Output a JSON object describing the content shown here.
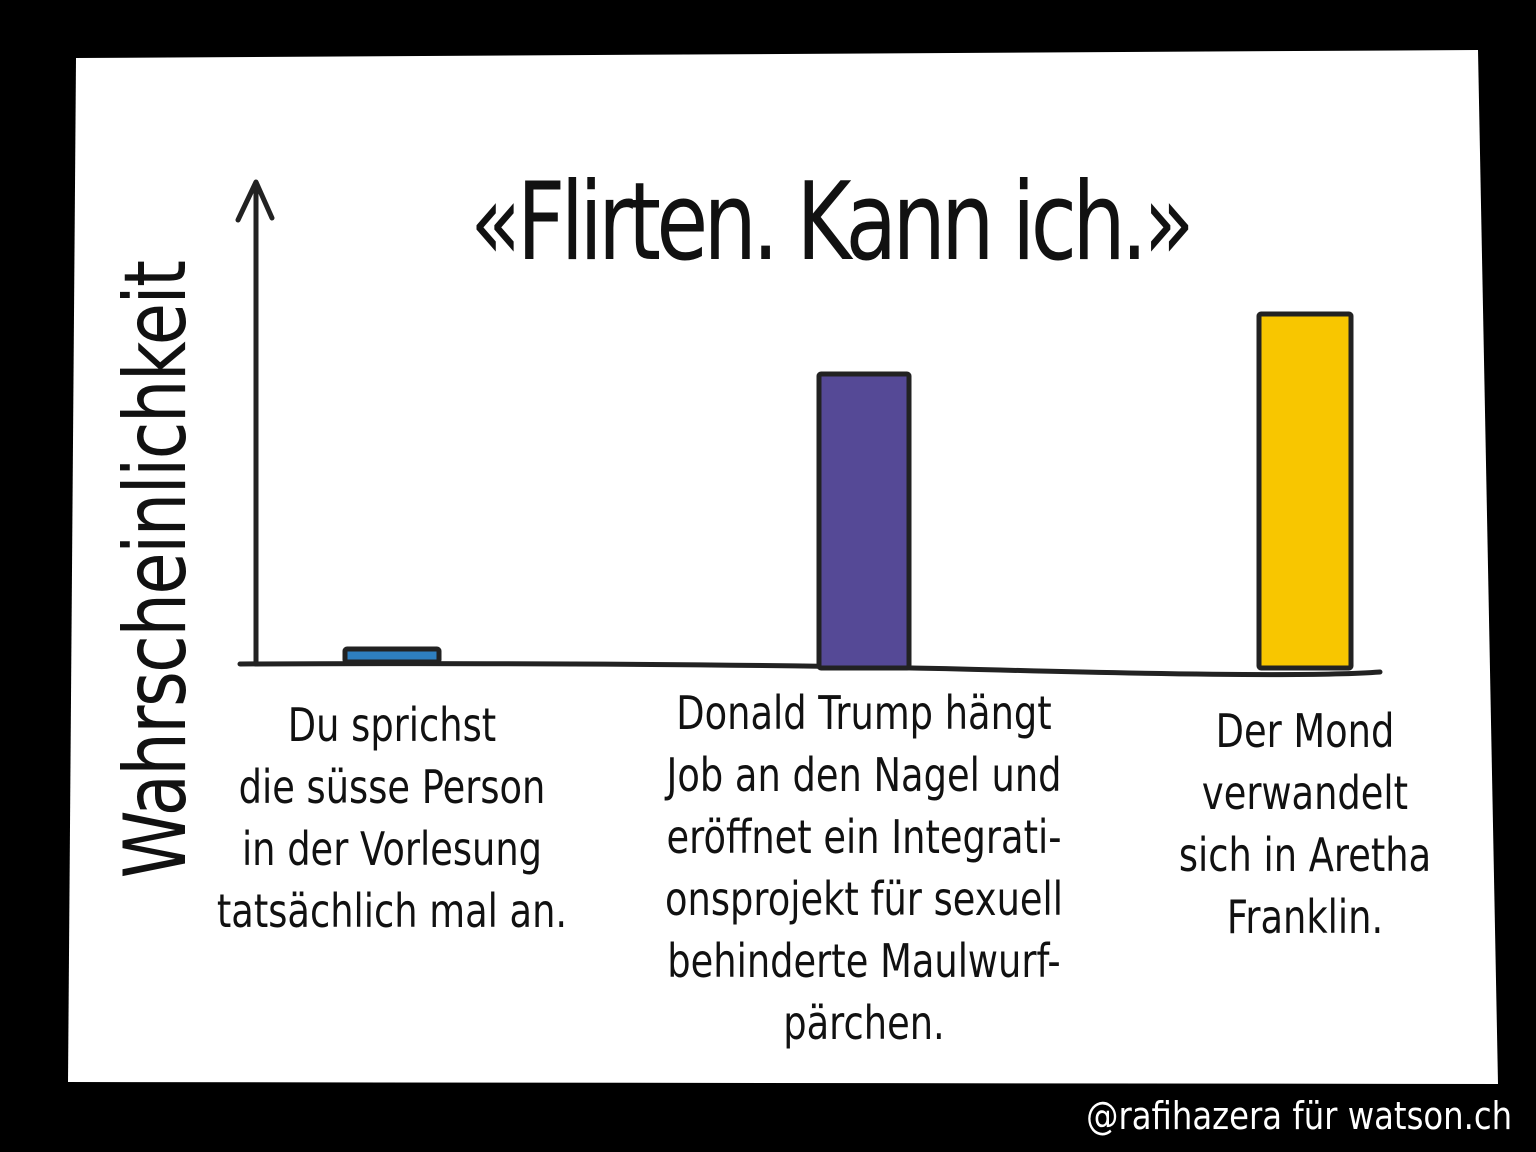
{
  "credit": "@rafihazera für watson.ch",
  "colors": {
    "background": "#000000",
    "paper": "#ffffff",
    "ink": "#222222",
    "bar1": "#2e7fc0",
    "bar2": "#554996",
    "bar3": "#f8c600"
  },
  "chart_data": {
    "type": "bar",
    "title": "«Flirten. Kann ich.»",
    "xlabel": "",
    "ylabel": "Wahrscheinlichkeit",
    "ylim": [
      0,
      100
    ],
    "grid": false,
    "categories": [
      "Du sprichst\ndie süsse Person\nin der Vorlesung\ntatsächlich mal an.",
      "Donald Trump hängt\nJob an den Nagel und\neröffnet ein Integrati-\nonsprojekt für sexuell\nbehinderte Maulwurf-\npärchen.",
      "Der Mond\nverwandelt\nsich in Aretha\nFranklin."
    ],
    "values": [
      3,
      58,
      70
    ]
  }
}
